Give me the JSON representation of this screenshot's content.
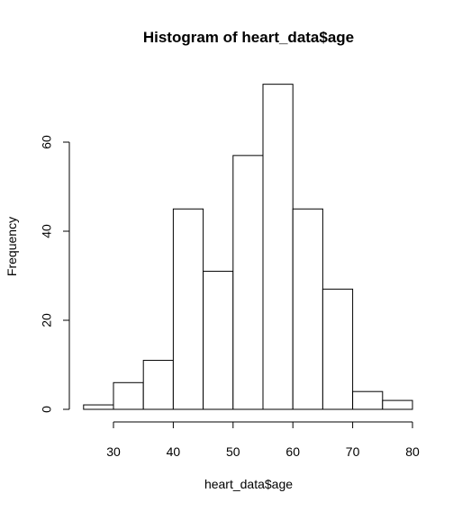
{
  "chart_data": {
    "type": "bar",
    "title": "Histogram of heart_data$age",
    "xlabel": "heart_data$age",
    "ylabel": "Frequency",
    "bins": [
      {
        "from": 25,
        "to": 30,
        "count": 1
      },
      {
        "from": 30,
        "to": 35,
        "count": 6
      },
      {
        "from": 35,
        "to": 40,
        "count": 11
      },
      {
        "from": 40,
        "to": 45,
        "count": 45
      },
      {
        "from": 45,
        "to": 50,
        "count": 31
      },
      {
        "from": 50,
        "to": 55,
        "count": 57
      },
      {
        "from": 55,
        "to": 60,
        "count": 73
      },
      {
        "from": 60,
        "to": 65,
        "count": 45
      },
      {
        "from": 65,
        "to": 70,
        "count": 27
      },
      {
        "from": 70,
        "to": 75,
        "count": 4
      },
      {
        "from": 75,
        "to": 80,
        "count": 2
      }
    ],
    "x_ticks": [
      30,
      40,
      50,
      60,
      70,
      80
    ],
    "y_ticks": [
      0,
      20,
      40,
      60
    ],
    "xlim": [
      25,
      80
    ],
    "ylim": [
      0,
      73
    ],
    "grid": false,
    "bar_fill": "#ffffff",
    "bar_stroke": "#000000"
  }
}
